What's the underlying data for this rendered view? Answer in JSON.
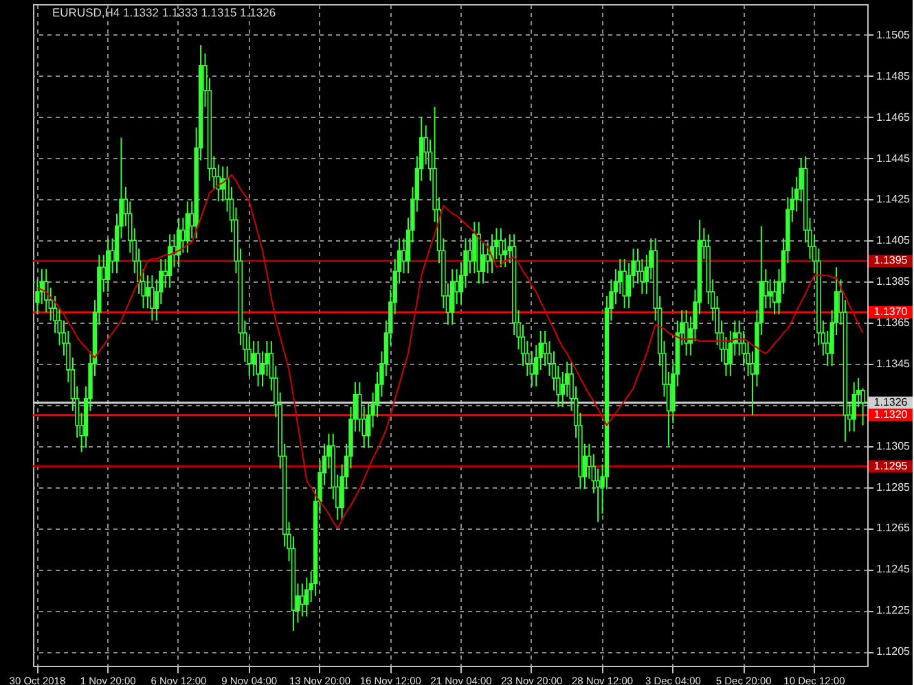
{
  "chart_data": {
    "type": "candlestick",
    "title": "EURUSD,H4  1.1332 1.1333 1.1315 1.1326",
    "categories": [
      "30 Oct 2018",
      null,
      null,
      null,
      null,
      null,
      null,
      null,
      null,
      null,
      null,
      null,
      null,
      null,
      null,
      null,
      "1 Nov 20:00",
      null,
      null,
      null,
      null,
      null,
      null,
      null,
      null,
      null,
      null,
      null,
      null,
      null,
      null,
      null,
      "6 Nov 12:00",
      null,
      null,
      null,
      null,
      null,
      null,
      null,
      null,
      null,
      null,
      null,
      null,
      null,
      null,
      null,
      "9 Nov 04:00",
      null,
      null,
      null,
      null,
      null,
      null,
      null,
      null,
      null,
      null,
      null,
      null,
      null,
      null,
      null,
      "13 Nov 20:00",
      null,
      null,
      null,
      null,
      null,
      null,
      null,
      null,
      null,
      null,
      null,
      null,
      null,
      null,
      null,
      "16 Nov 12:00",
      null,
      null,
      null,
      null,
      null,
      null,
      null,
      null,
      null,
      null,
      null,
      null,
      null,
      null,
      null,
      "21 Nov 04:00",
      null,
      null,
      null,
      null,
      null,
      null,
      null,
      null,
      null,
      null,
      null,
      null,
      null,
      null,
      null,
      "23 Nov 20:00",
      null,
      null,
      null,
      null,
      null,
      null,
      null,
      null,
      null,
      null,
      null,
      null,
      null,
      null,
      null,
      "28 Nov 12:00",
      null,
      null,
      null,
      null,
      null,
      null,
      null,
      null,
      null,
      null,
      null,
      null,
      null,
      null,
      null,
      "3 Dec 04:00",
      null,
      null,
      null,
      null,
      null,
      null,
      null,
      null,
      null,
      null,
      null,
      null,
      null,
      null,
      null,
      "5 Dec 20:00",
      null,
      null,
      null,
      null,
      null,
      null,
      null,
      null,
      null,
      null,
      null,
      null,
      null,
      null,
      null,
      "10 Dec 12:00",
      null,
      null,
      null,
      null,
      null,
      null,
      null,
      null,
      null,
      null,
      null
    ],
    "series": [
      {
        "type": "candlestick",
        "color": "#33ff33",
        "ohlc": [
          [
            1.1375,
            1.1386,
            1.1369,
            1.138
          ],
          [
            1.138,
            1.1391,
            1.1374,
            1.1385
          ],
          [
            1.1385,
            1.1391,
            1.137,
            1.1376
          ],
          [
            1.1376,
            1.1382,
            1.1366,
            1.1372
          ],
          [
            1.1372,
            1.1378,
            1.136,
            1.1366
          ],
          [
            1.1366,
            1.1372,
            1.1354,
            1.136
          ],
          [
            1.136,
            1.1366,
            1.1349,
            1.1355
          ],
          [
            1.1355,
            1.1361,
            1.1336,
            1.1342
          ],
          [
            1.1342,
            1.1348,
            1.1322,
            1.1328
          ],
          [
            1.1328,
            1.1334,
            1.1309,
            1.1315
          ],
          [
            1.1315,
            1.1321,
            1.1302,
            1.131
          ],
          [
            1.131,
            1.1334,
            1.1304,
            1.1328
          ],
          [
            1.1328,
            1.1351,
            1.1322,
            1.1345
          ],
          [
            1.1345,
            1.1376,
            1.1339,
            1.137
          ],
          [
            1.137,
            1.1398,
            1.1364,
            1.1392
          ],
          [
            1.1392,
            1.1398,
            1.138,
            1.1386
          ],
          [
            1.1386,
            1.1406,
            1.138,
            1.14
          ],
          [
            1.14,
            1.1406,
            1.1389,
            1.1395
          ],
          [
            1.1395,
            1.1418,
            1.1389,
            1.1412
          ],
          [
            1.1412,
            1.1455,
            1.1406,
            1.1425
          ],
          [
            1.1425,
            1.1431,
            1.1412,
            1.1418
          ],
          [
            1.1418,
            1.1424,
            1.1399,
            1.1405
          ],
          [
            1.1405,
            1.1411,
            1.1389,
            1.1395
          ],
          [
            1.1395,
            1.1401,
            1.1379,
            1.1385
          ],
          [
            1.1385,
            1.1391,
            1.1372,
            1.1378
          ],
          [
            1.1378,
            1.1388,
            1.1372,
            1.1382
          ],
          [
            1.1382,
            1.1388,
            1.1366,
            1.1372
          ],
          [
            1.1372,
            1.1386,
            1.1366,
            1.138
          ],
          [
            1.138,
            1.1396,
            1.1374,
            1.139
          ],
          [
            1.139,
            1.1396,
            1.1382,
            1.1388
          ],
          [
            1.1388,
            1.1408,
            1.1382,
            1.1402
          ],
          [
            1.1402,
            1.1408,
            1.1392,
            1.1398
          ],
          [
            1.1398,
            1.1416,
            1.1392,
            1.141
          ],
          [
            1.141,
            1.1416,
            1.1399,
            1.1405
          ],
          [
            1.1405,
            1.1424,
            1.1399,
            1.1418
          ],
          [
            1.1418,
            1.1424,
            1.1406,
            1.1412
          ],
          [
            1.1412,
            1.146,
            1.1406,
            1.145
          ],
          [
            1.145,
            1.15,
            1.1444,
            1.149
          ],
          [
            1.149,
            1.1496,
            1.147,
            1.1478
          ],
          [
            1.1478,
            1.1484,
            1.1434,
            1.144
          ],
          [
            1.144,
            1.1446,
            1.143,
            1.1436
          ],
          [
            1.1436,
            1.1442,
            1.1424,
            1.143
          ],
          [
            1.143,
            1.1441,
            1.1424,
            1.1435
          ],
          [
            1.1435,
            1.1441,
            1.1419,
            1.1425
          ],
          [
            1.1425,
            1.1431,
            1.1409,
            1.1415
          ],
          [
            1.1415,
            1.1421,
            1.1389,
            1.1395
          ],
          [
            1.1395,
            1.1401,
            1.1354,
            1.136
          ],
          [
            1.136,
            1.1366,
            1.1346,
            1.1352
          ],
          [
            1.1352,
            1.1358,
            1.1339,
            1.1345
          ],
          [
            1.1345,
            1.1356,
            1.1339,
            1.135
          ],
          [
            1.135,
            1.1356,
            1.1334,
            1.134
          ],
          [
            1.134,
            1.1351,
            1.1334,
            1.1345
          ],
          [
            1.1345,
            1.1356,
            1.1339,
            1.135
          ],
          [
            1.135,
            1.1356,
            1.1332,
            1.1338
          ],
          [
            1.1338,
            1.1344,
            1.1319,
            1.1325
          ],
          [
            1.1325,
            1.1331,
            1.1294,
            1.13
          ],
          [
            1.13,
            1.1306,
            1.1256,
            1.1262
          ],
          [
            1.1262,
            1.1268,
            1.1249,
            1.1255
          ],
          [
            1.1255,
            1.1261,
            1.1215,
            1.1225
          ],
          [
            1.1225,
            1.1238,
            1.1219,
            1.1232
          ],
          [
            1.1232,
            1.1238,
            1.1222,
            1.1228
          ],
          [
            1.1228,
            1.1241,
            1.1222,
            1.1235
          ],
          [
            1.1235,
            1.1244,
            1.1229,
            1.1238
          ],
          [
            1.1238,
            1.1284,
            1.1232,
            1.1278
          ],
          [
            1.1278,
            1.1298,
            1.1272,
            1.1292
          ],
          [
            1.1292,
            1.1306,
            1.1286,
            1.13
          ],
          [
            1.13,
            1.1311,
            1.1294,
            1.1305
          ],
          [
            1.1305,
            1.1311,
            1.1279,
            1.1285
          ],
          [
            1.1285,
            1.1291,
            1.1269,
            1.1275
          ],
          [
            1.1275,
            1.1296,
            1.1269,
            1.129
          ],
          [
            1.129,
            1.1306,
            1.1284,
            1.13
          ],
          [
            1.13,
            1.1324,
            1.1294,
            1.1318
          ],
          [
            1.1318,
            1.1336,
            1.1312,
            1.133
          ],
          [
            1.133,
            1.1336,
            1.1312,
            1.1318
          ],
          [
            1.1318,
            1.1324,
            1.1304,
            1.131
          ],
          [
            1.131,
            1.1326,
            1.1304,
            1.132
          ],
          [
            1.132,
            1.1331,
            1.1314,
            1.1325
          ],
          [
            1.1325,
            1.1341,
            1.1319,
            1.1335
          ],
          [
            1.1335,
            1.1351,
            1.1329,
            1.1345
          ],
          [
            1.1345,
            1.1366,
            1.1339,
            1.136
          ],
          [
            1.136,
            1.1381,
            1.1354,
            1.1375
          ],
          [
            1.1375,
            1.1396,
            1.1369,
            1.139
          ],
          [
            1.139,
            1.1406,
            1.1384,
            1.14
          ],
          [
            1.14,
            1.1406,
            1.1389,
            1.1395
          ],
          [
            1.1395,
            1.1416,
            1.1389,
            1.141
          ],
          [
            1.141,
            1.1431,
            1.1404,
            1.1425
          ],
          [
            1.1425,
            1.1446,
            1.1419,
            1.144
          ],
          [
            1.144,
            1.1465,
            1.1434,
            1.1455
          ],
          [
            1.1455,
            1.1461,
            1.1442,
            1.1448
          ],
          [
            1.1448,
            1.1454,
            1.1434,
            1.144
          ],
          [
            1.144,
            1.147,
            1.1414,
            1.142
          ],
          [
            1.142,
            1.1426,
            1.1394,
            1.14
          ],
          [
            1.14,
            1.1406,
            1.1372,
            1.1378
          ],
          [
            1.1378,
            1.1384,
            1.1364,
            1.137
          ],
          [
            1.137,
            1.1391,
            1.1364,
            1.1385
          ],
          [
            1.1385,
            1.1391,
            1.1374,
            1.138
          ],
          [
            1.138,
            1.1394,
            1.1374,
            1.1388
          ],
          [
            1.1388,
            1.1406,
            1.1382,
            1.14
          ],
          [
            1.14,
            1.1406,
            1.1389,
            1.1395
          ],
          [
            1.1395,
            1.1414,
            1.1389,
            1.1408
          ],
          [
            1.1408,
            1.1414,
            1.1384,
            1.139
          ],
          [
            1.139,
            1.1404,
            1.1384,
            1.1398
          ],
          [
            1.1398,
            1.1404,
            1.1389,
            1.1395
          ],
          [
            1.1395,
            1.1408,
            1.1389,
            1.1402
          ],
          [
            1.1402,
            1.1411,
            1.1396,
            1.1405
          ],
          [
            1.1405,
            1.1411,
            1.1392,
            1.1398
          ],
          [
            1.1398,
            1.1406,
            1.1392,
            1.14
          ],
          [
            1.14,
            1.1408,
            1.1394,
            1.1402
          ],
          [
            1.1402,
            1.1408,
            1.1359,
            1.1365
          ],
          [
            1.1365,
            1.1371,
            1.1352,
            1.1358
          ],
          [
            1.1358,
            1.1364,
            1.1344,
            1.135
          ],
          [
            1.135,
            1.1356,
            1.1339,
            1.1345
          ],
          [
            1.1345,
            1.1351,
            1.1334,
            1.134
          ],
          [
            1.134,
            1.1354,
            1.1334,
            1.1348
          ],
          [
            1.1348,
            1.1361,
            1.1342,
            1.1355
          ],
          [
            1.1355,
            1.1361,
            1.1344,
            1.135
          ],
          [
            1.135,
            1.1356,
            1.1339,
            1.1345
          ],
          [
            1.1345,
            1.1351,
            1.1332,
            1.1338
          ],
          [
            1.1338,
            1.1344,
            1.1324,
            1.133
          ],
          [
            1.133,
            1.1341,
            1.1324,
            1.1335
          ],
          [
            1.1335,
            1.1346,
            1.1329,
            1.134
          ],
          [
            1.134,
            1.1346,
            1.1322,
            1.1328
          ],
          [
            1.1328,
            1.1334,
            1.1309,
            1.1315
          ],
          [
            1.1315,
            1.1321,
            1.1284,
            1.129
          ],
          [
            1.129,
            1.1306,
            1.1284,
            1.13
          ],
          [
            1.13,
            1.1306,
            1.1289,
            1.1295
          ],
          [
            1.1295,
            1.1301,
            1.1282,
            1.1288
          ],
          [
            1.1288,
            1.1294,
            1.1268,
            1.1285
          ],
          [
            1.1285,
            1.1296,
            1.1272,
            1.129
          ],
          [
            1.129,
            1.1378,
            1.1284,
            1.1372
          ],
          [
            1.1372,
            1.1386,
            1.1366,
            1.138
          ],
          [
            1.138,
            1.1391,
            1.1374,
            1.1385
          ],
          [
            1.1385,
            1.1396,
            1.1379,
            1.139
          ],
          [
            1.139,
            1.1396,
            1.1372,
            1.1378
          ],
          [
            1.1378,
            1.1394,
            1.1372,
            1.1388
          ],
          [
            1.1388,
            1.1401,
            1.1382,
            1.1395
          ],
          [
            1.1395,
            1.1401,
            1.1384,
            1.139
          ],
          [
            1.139,
            1.1396,
            1.1379,
            1.1385
          ],
          [
            1.1385,
            1.1398,
            1.1379,
            1.1392
          ],
          [
            1.1392,
            1.1406,
            1.1386,
            1.14
          ],
          [
            1.14,
            1.1406,
            1.1366,
            1.1372
          ],
          [
            1.1372,
            1.1378,
            1.1344,
            1.135
          ],
          [
            1.135,
            1.1356,
            1.1329,
            1.1335
          ],
          [
            1.1335,
            1.1341,
            1.1305,
            1.1322
          ],
          [
            1.1322,
            1.1346,
            1.1316,
            1.134
          ],
          [
            1.134,
            1.1366,
            1.1334,
            1.136
          ],
          [
            1.136,
            1.1371,
            1.1354,
            1.1365
          ],
          [
            1.1365,
            1.1371,
            1.1349,
            1.1355
          ],
          [
            1.1355,
            1.1368,
            1.1349,
            1.1362
          ],
          [
            1.1362,
            1.1381,
            1.1356,
            1.1375
          ],
          [
            1.1375,
            1.1415,
            1.1369,
            1.1405
          ],
          [
            1.1405,
            1.1411,
            1.1396,
            1.1402
          ],
          [
            1.1402,
            1.1408,
            1.1374,
            1.138
          ],
          [
            1.138,
            1.1386,
            1.1366,
            1.1372
          ],
          [
            1.1372,
            1.1378,
            1.1354,
            1.136
          ],
          [
            1.136,
            1.1366,
            1.1346,
            1.1352
          ],
          [
            1.1352,
            1.1358,
            1.1339,
            1.1345
          ],
          [
            1.1345,
            1.1361,
            1.1339,
            1.1355
          ],
          [
            1.1355,
            1.1366,
            1.1349,
            1.136
          ],
          [
            1.136,
            1.1366,
            1.1349,
            1.1355
          ],
          [
            1.1355,
            1.1361,
            1.1344,
            1.135
          ],
          [
            1.135,
            1.1356,
            1.1339,
            1.1345
          ],
          [
            1.1345,
            1.1351,
            1.132,
            1.134
          ],
          [
            1.134,
            1.1371,
            1.1334,
            1.1365
          ],
          [
            1.1365,
            1.1412,
            1.1359,
            1.1385
          ],
          [
            1.1385,
            1.1391,
            1.1372,
            1.1378
          ],
          [
            1.1378,
            1.1386,
            1.1372,
            1.138
          ],
          [
            1.138,
            1.1386,
            1.1369,
            1.1375
          ],
          [
            1.1375,
            1.1391,
            1.1369,
            1.1385
          ],
          [
            1.1385,
            1.1406,
            1.1379,
            1.14
          ],
          [
            1.14,
            1.1426,
            1.1394,
            1.142
          ],
          [
            1.142,
            1.1431,
            1.1414,
            1.1425
          ],
          [
            1.1425,
            1.1436,
            1.1419,
            1.143
          ],
          [
            1.143,
            1.1445,
            1.1424,
            1.144
          ],
          [
            1.144,
            1.1446,
            1.1404,
            1.141
          ],
          [
            1.141,
            1.1416,
            1.1396,
            1.1402
          ],
          [
            1.1402,
            1.1408,
            1.1389,
            1.1395
          ],
          [
            1.1395,
            1.1401,
            1.1354,
            1.136
          ],
          [
            1.136,
            1.1366,
            1.1349,
            1.1355
          ],
          [
            1.1355,
            1.1361,
            1.1344,
            1.135
          ],
          [
            1.135,
            1.1371,
            1.1344,
            1.1365
          ],
          [
            1.1365,
            1.1392,
            1.1359,
            1.138
          ],
          [
            1.138,
            1.1386,
            1.1364,
            1.137
          ],
          [
            1.137,
            1.1376,
            1.1307,
            1.132
          ],
          [
            1.132,
            1.1326,
            1.1312,
            1.1318
          ],
          [
            1.1318,
            1.1336,
            1.1312,
            1.133
          ],
          [
            1.133,
            1.1338,
            1.1324,
            1.1332
          ],
          [
            1.1332,
            1.1333,
            1.1315,
            1.1326
          ]
        ]
      },
      {
        "type": "line",
        "color": "#d00000",
        "values": [
          1.1382,
          1.1381,
          1.138,
          1.1377,
          1.1375,
          1.1372,
          1.1369,
          1.1365,
          1.1362,
          1.1358,
          1.1355,
          1.1353,
          1.135,
          1.1348,
          1.1351,
          1.1354,
          1.1357,
          1.136,
          1.1363,
          1.1366,
          1.1371,
          1.1376,
          1.1381,
          1.1385,
          1.139,
          1.1395,
          1.1396,
          1.1396,
          1.1397,
          1.1398,
          1.1398,
          1.1399,
          1.14,
          1.1401,
          1.1403,
          1.1404,
          1.141,
          1.1416,
          1.1422,
          1.1428,
          1.143,
          1.1432,
          1.1433,
          1.1435,
          1.1437,
          1.1434,
          1.143,
          1.1427,
          1.1424,
          1.1416,
          1.1408,
          1.14,
          1.1389,
          1.1377,
          1.1366,
          1.1358,
          1.135,
          1.1342,
          1.1329,
          1.1315,
          1.1302,
          1.1288,
          1.1285,
          1.1281,
          1.1278,
          1.1275,
          1.1272,
          1.1268,
          1.1265,
          1.1269,
          1.1273,
          1.1276,
          1.128,
          1.1284,
          1.1289,
          1.1294,
          1.1299,
          1.1303,
          1.1308,
          1.1313,
          1.132,
          1.1328,
          1.1335,
          1.1343,
          1.135,
          1.1363,
          1.1375,
          1.1388,
          1.1395,
          1.1402,
          1.1408,
          1.1415,
          1.1422,
          1.142,
          1.1418,
          1.1417,
          1.1415,
          1.1413,
          1.1411,
          1.1409,
          1.1406,
          1.1404,
          1.1402,
          1.1397,
          1.1392,
          1.1393,
          1.1395,
          1.1396,
          1.1397,
          1.1394,
          1.139,
          1.1387,
          1.1383,
          1.138,
          1.1375,
          1.1371,
          1.1366,
          1.1362,
          1.1357,
          1.1353,
          1.135,
          1.1346,
          1.1342,
          1.1338,
          1.1334,
          1.133,
          1.1327,
          1.1323,
          1.1319,
          1.1315,
          1.1318,
          1.1321,
          1.1324,
          1.1327,
          1.133,
          1.1333,
          1.1339,
          1.1344,
          1.135,
          1.1357,
          1.1364,
          1.1363,
          1.1362,
          1.136,
          1.1359,
          1.1358,
          1.1357,
          1.1357,
          1.1357,
          1.1357,
          1.1356,
          1.1356,
          1.1356,
          1.1356,
          1.1356,
          1.1356,
          1.1356,
          1.1356,
          1.1357,
          1.1357,
          1.1357,
          1.1356,
          1.1354,
          1.1353,
          1.1351,
          1.135,
          1.1352,
          1.1355,
          1.1357,
          1.136,
          1.1362,
          1.1366,
          1.1371,
          1.1375,
          1.1379,
          1.1384,
          1.1388,
          1.1388,
          1.1388,
          1.1388,
          1.1387,
          1.1387,
          1.1382,
          1.1378,
          1.1373,
          1.1369,
          1.1364,
          1.136
        ]
      }
    ],
    "ylim": [
      1.1198,
      1.152
    ],
    "yticks": [
      1.1205,
      1.1225,
      1.1245,
      1.1265,
      1.1285,
      1.1305,
      {
        "value": 1.1325,
        "label": null
      },
      1.1345,
      1.1365,
      1.1385,
      1.1405,
      1.1425,
      1.1445,
      1.1465,
      1.1485,
      1.1505
    ],
    "ref_lines": [
      {
        "axis": "y",
        "value": 1.1395,
        "label": "1.1395",
        "color": "#b00000"
      },
      {
        "axis": "y",
        "value": 1.137,
        "label": "1.1370",
        "color": "#ff0000"
      },
      {
        "axis": "y",
        "value": 1.1326,
        "label": "1.1326",
        "color": "#d0d0d0"
      },
      {
        "axis": "y",
        "value": 1.132,
        "label": "1.1320",
        "color": "#ff0000"
      },
      {
        "axis": "y",
        "value": 1.1295,
        "label": "1.1295",
        "color": "#b00000"
      }
    ],
    "grid": true
  }
}
